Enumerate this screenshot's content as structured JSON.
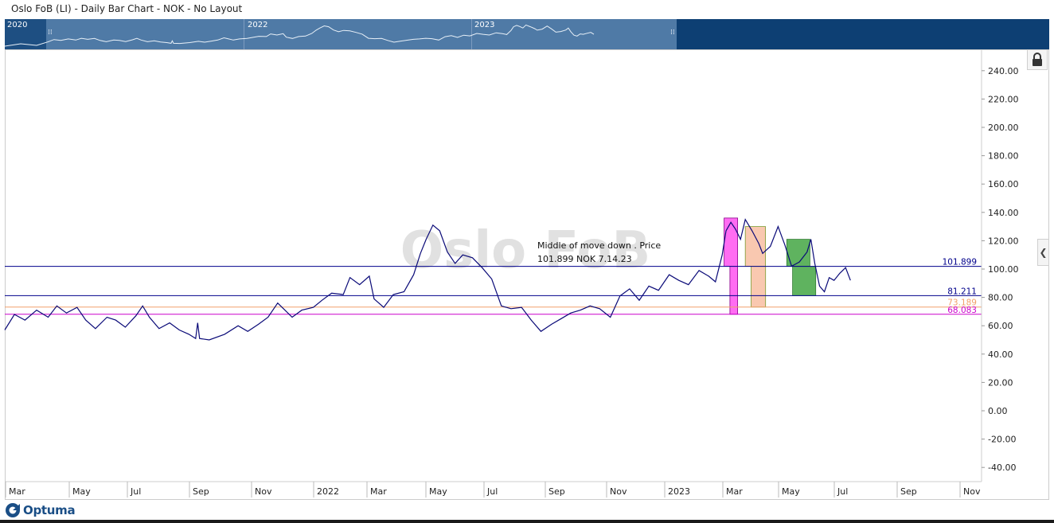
{
  "window": {
    "title": "Oslo FoB (LI) - Daily Bar Chart - NOK - No Layout"
  },
  "navigator": {
    "years": [
      "2020",
      "2022",
      "2023"
    ]
  },
  "watermark": "Oslo FoB",
  "branding": {
    "logo_text": "Optuma",
    "logo_icon": "optuma-logo-icon"
  },
  "controls": {
    "lock_icon": "lock-icon",
    "collapse_icon": "chevron-left-icon"
  },
  "colors": {
    "price_line": "#0a0a78",
    "navy_line": "#00008b",
    "orange_line": "#f2a06a",
    "magenta_line": "#cc00cc",
    "magenta_box": "#ff6cf2",
    "salmon_box": "#f9c8b0",
    "green_box": "#5fb35f",
    "navigator_bg": "#0d3f73"
  },
  "chart_data": {
    "type": "line",
    "title": "",
    "xlabel": "",
    "ylabel": "",
    "ylim": [
      -50,
      255
    ],
    "y_ticks": [
      "240.00",
      "220.00",
      "200.00",
      "180.00",
      "160.00",
      "140.00",
      "120.00",
      "100.00",
      "80.00",
      "60.00",
      "40.00",
      "20.00",
      "0.00",
      "-20.00",
      "-40.00"
    ],
    "x_ticks": [
      "Mar",
      "May",
      "Jul",
      "Sep",
      "Nov",
      "2022",
      "Mar",
      "May",
      "Jul",
      "Sep",
      "Nov",
      "2023",
      "Mar",
      "May",
      "Jul",
      "Sep",
      "Nov"
    ],
    "x_start": "2021-02-15",
    "x_end": "2023-11-25",
    "grid": false,
    "series": [
      {
        "name": "",
        "x": [
          "2021-02-15",
          "2021-02-25",
          "2021-03-08",
          "2021-03-20",
          "2021-04-01",
          "2021-04-10",
          "2021-04-20",
          "2021-05-01",
          "2021-05-10",
          "2021-05-20",
          "2021-06-01",
          "2021-06-10",
          "2021-06-20",
          "2021-07-01",
          "2021-07-08",
          "2021-07-15",
          "2021-07-25",
          "2021-08-05",
          "2021-08-15",
          "2021-08-25",
          "2021-09-01",
          "2021-09-03",
          "2021-09-05",
          "2021-09-15",
          "2021-10-01",
          "2021-10-15",
          "2021-10-25",
          "2021-11-05",
          "2021-11-15",
          "2021-11-25",
          "2021-12-01",
          "2021-12-10",
          "2021-12-20",
          "2022-01-01",
          "2022-01-10",
          "2022-01-20",
          "2022-02-01",
          "2022-02-08",
          "2022-02-18",
          "2022-02-28",
          "2022-03-05",
          "2022-03-15",
          "2022-03-25",
          "2022-04-05",
          "2022-04-15",
          "2022-04-22",
          "2022-04-28",
          "2022-05-05",
          "2022-05-12",
          "2022-05-20",
          "2022-05-28",
          "2022-06-05",
          "2022-06-15",
          "2022-06-25",
          "2022-07-05",
          "2022-07-15",
          "2022-07-25",
          "2022-08-05",
          "2022-08-15",
          "2022-08-25",
          "2022-09-05",
          "2022-09-15",
          "2022-09-25",
          "2022-10-05",
          "2022-10-15",
          "2022-10-25",
          "2022-11-05",
          "2022-11-15",
          "2022-11-25",
          "2022-12-05",
          "2022-12-15",
          "2022-12-25",
          "2023-01-05",
          "2023-01-15",
          "2023-01-25",
          "2023-02-05",
          "2023-02-15",
          "2023-02-22",
          "2023-03-01",
          "2023-03-05",
          "2023-03-10",
          "2023-03-15",
          "2023-03-20",
          "2023-03-25",
          "2023-04-01",
          "2023-04-08",
          "2023-04-12",
          "2023-04-20",
          "2023-04-28",
          "2023-05-05",
          "2023-05-12",
          "2023-05-20",
          "2023-05-28",
          "2023-06-01",
          "2023-06-05",
          "2023-06-10",
          "2023-06-15",
          "2023-06-20",
          "2023-06-25",
          "2023-07-01",
          "2023-07-07",
          "2023-07-12"
        ],
        "values": [
          57,
          68,
          64,
          71,
          66,
          74,
          69,
          73,
          64,
          58,
          66,
          64,
          59,
          67,
          74,
          66,
          58,
          62,
          57,
          54,
          51,
          62,
          51,
          50,
          54,
          60,
          56,
          61,
          66,
          76,
          72,
          66,
          71,
          73,
          78,
          83,
          82,
          94,
          89,
          95,
          79,
          73,
          82,
          84,
          96,
          111,
          121,
          131,
          127,
          112,
          104,
          110,
          108,
          101,
          93,
          74,
          72,
          73,
          64,
          56,
          61,
          65,
          69,
          71,
          74,
          72,
          66,
          81,
          86,
          78,
          88,
          85,
          96,
          92,
          89,
          99,
          95,
          91,
          110,
          127,
          133,
          128,
          121,
          135,
          127,
          118,
          111,
          116,
          130,
          117,
          102,
          105,
          112,
          121,
          104,
          88,
          84,
          94,
          92,
          97,
          101,
          92
        ]
      }
    ],
    "levels": [
      {
        "label": "101.899",
        "value": 101.899,
        "color": "#00008b"
      },
      {
        "label": "81.211",
        "value": 81.211,
        "color": "#00008b"
      },
      {
        "label": "73.189",
        "value": 73.189,
        "color": "#f2a06a"
      },
      {
        "label": "68.083",
        "value": 68.083,
        "color": "#cc00cc"
      }
    ],
    "boxes": [
      {
        "x0": "2023-03-03",
        "x1": "2023-03-17",
        "y0": 101.899,
        "y1": 136,
        "fill": "#ff6cf2"
      },
      {
        "x0": "2023-03-09",
        "x1": "2023-03-17",
        "y0": 68.083,
        "y1": 101.899,
        "fill": "#ff6cf2"
      },
      {
        "x0": "2023-03-25",
        "x1": "2023-04-15",
        "y0": 101.899,
        "y1": 130,
        "fill": "#f9c8b0"
      },
      {
        "x0": "2023-03-31",
        "x1": "2023-04-15",
        "y0": 73.189,
        "y1": 101.899,
        "fill": "#f9c8b0"
      },
      {
        "x0": "2023-05-07",
        "x1": "2023-05-31",
        "y0": 101.899,
        "y1": 121,
        "fill": "#5fb35f"
      },
      {
        "x0": "2023-05-13",
        "x1": "2023-06-06",
        "y0": 81.211,
        "y1": 101.899,
        "fill": "#5fb35f"
      }
    ],
    "annotation": {
      "line1": "Middle of move down . Price",
      "line2": "101.899 NOK 7.14.23"
    }
  }
}
